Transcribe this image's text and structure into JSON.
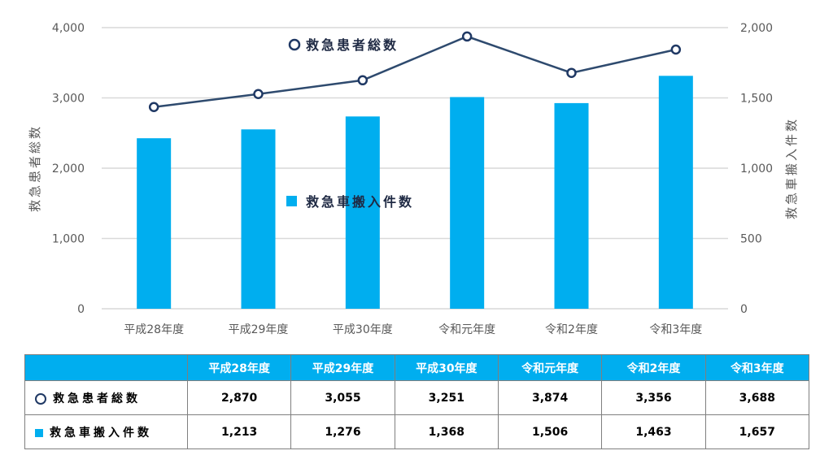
{
  "chart_data": {
    "type": "bar+line",
    "categories": [
      "平成28年度",
      "平成29年度",
      "平成30年度",
      "令和元年度",
      "令和2年度",
      "令和3年度"
    ],
    "series": [
      {
        "name": "救急患者総数",
        "type": "line",
        "axis": "left",
        "values": [
          2870,
          3055,
          3251,
          3874,
          3356,
          3688
        ]
      },
      {
        "name": "救急車搬入件数",
        "type": "bar",
        "axis": "right",
        "values": [
          1213,
          1276,
          1368,
          1506,
          1463,
          1657
        ]
      }
    ],
    "ylabel_left": "救急患者総数",
    "ylabel_right": "救急車搬入件数",
    "ylim_left": [
      0,
      4000
    ],
    "ylim_right": [
      0,
      2000
    ],
    "yticks_left": [
      "0",
      "1,000",
      "2,000",
      "3,000",
      "4,000"
    ],
    "yticks_right": [
      "0",
      "500",
      "1,000",
      "1,500",
      "2,000"
    ],
    "grid": true,
    "colors": {
      "bar": "#00aeef",
      "line": "#2e4a6e",
      "marker_edge": "#1f3864",
      "grid": "#d9d9d9",
      "header_bg": "#00aeef"
    }
  },
  "table": {
    "headers": [
      "平成28年度",
      "平成29年度",
      "平成30年度",
      "令和元年度",
      "令和2年度",
      "令和3年度"
    ],
    "rows": [
      {
        "label": "救急患者総数",
        "marker": "circle",
        "values": [
          "2,870",
          "3,055",
          "3,251",
          "3,874",
          "3,356",
          "3,688"
        ]
      },
      {
        "label": "救急車搬入件数",
        "marker": "square",
        "values": [
          "1,213",
          "1,276",
          "1,368",
          "1,506",
          "1,463",
          "1,657"
        ]
      }
    ]
  }
}
